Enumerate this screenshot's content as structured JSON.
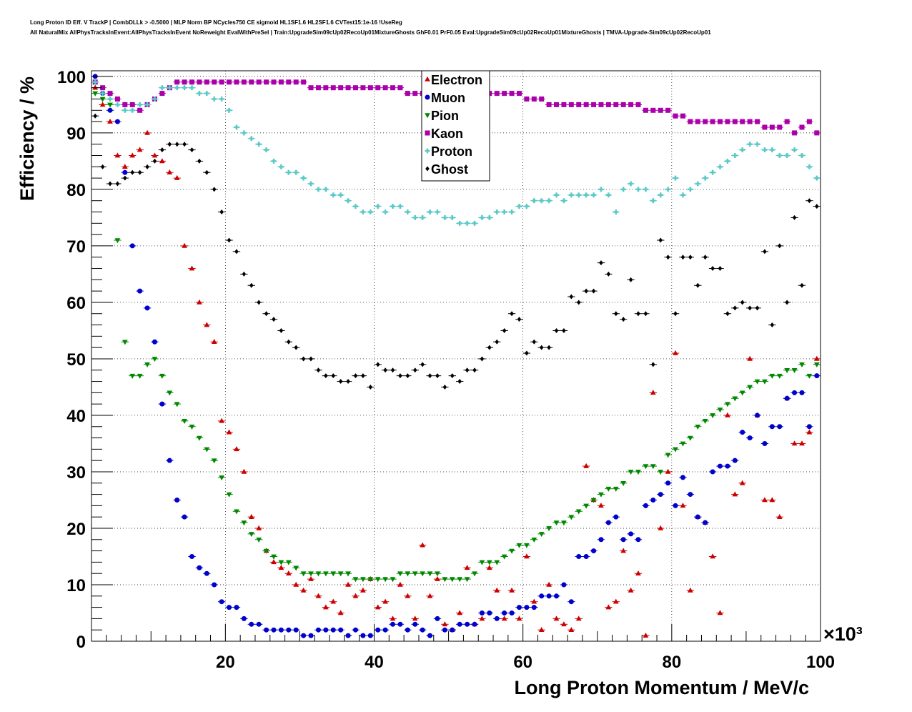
{
  "title": {
    "line1": "Long Proton ID Eff. V TrackP | CombDLLk > -0.5000 | MLP Norm BP NCycles750 CE sigmoid HL1SF1.6 HL2SF1.6 CVTest15:1e-16 !UseReg",
    "line2": "All NaturalMix AllPhysTracksInEvent:AllPhysTracksInEvent NoReweight EvalWithPreSel | Train:UpgradeSim09cUp02RecoUp01MixtureGhosts GhF0.01 PrF0.05 Eval:UpgradeSim09cUp02RecoUp01MixtureGhosts | TMVA-Upgrade-Sim09cUp02RecoUp01"
  },
  "chart_data": {
    "type": "scatter",
    "xlabel": "Long Proton Momentum / MeV/c",
    "ylabel": "Efficiency / %",
    "x_multiplier_label": "×10³",
    "xlim": [
      2,
      100
    ],
    "ylim": [
      0,
      101
    ],
    "xticks": [
      20,
      40,
      60,
      80,
      100
    ],
    "yticks": [
      0,
      10,
      20,
      30,
      40,
      50,
      60,
      70,
      80,
      90,
      100
    ],
    "grid": true,
    "legend_position": "top-center",
    "x": [
      2.5,
      3.5,
      4.5,
      5.5,
      6.5,
      7.5,
      8.5,
      9.5,
      10.5,
      11.5,
      12.5,
      13.5,
      14.5,
      15.5,
      16.5,
      17.5,
      18.5,
      19.5,
      20.5,
      21.5,
      22.5,
      23.5,
      24.5,
      25.5,
      26.5,
      27.5,
      28.5,
      29.5,
      30.5,
      31.5,
      32.5,
      33.5,
      34.5,
      35.5,
      36.5,
      37.5,
      38.5,
      39.5,
      40.5,
      41.5,
      42.5,
      43.5,
      44.5,
      45.5,
      46.5,
      47.5,
      48.5,
      49.5,
      50.5,
      51.5,
      52.5,
      53.5,
      54.5,
      55.5,
      56.5,
      57.5,
      58.5,
      59.5,
      60.5,
      61.5,
      62.5,
      63.5,
      64.5,
      65.5,
      66.5,
      67.5,
      68.5,
      69.5,
      70.5,
      71.5,
      72.5,
      73.5,
      74.5,
      75.5,
      76.5,
      77.5,
      78.5,
      79.5,
      80.5,
      81.5,
      82.5,
      83.5,
      84.5,
      85.5,
      86.5,
      87.5,
      88.5,
      89.5,
      90.5,
      91.5,
      92.5,
      93.5,
      94.5,
      95.5,
      96.5,
      97.5,
      98.5,
      99.5
    ],
    "series": [
      {
        "name": "Electron",
        "color": "#cc0000",
        "marker": "triangle-up",
        "values": [
          98,
          95,
          92,
          86,
          84,
          86,
          87,
          90,
          86,
          85,
          83,
          82,
          70,
          66,
          60,
          56,
          53,
          39,
          37,
          34,
          30,
          22,
          20,
          16,
          14,
          13,
          12,
          10,
          9,
          11,
          8,
          6,
          7,
          5,
          10,
          8,
          9,
          11,
          6,
          7,
          4,
          10,
          8,
          4,
          17,
          8,
          11,
          3,
          2,
          5,
          13,
          3,
          4,
          13,
          9,
          4,
          9,
          4,
          15,
          7,
          2,
          10,
          4,
          3,
          2,
          4,
          31,
          25,
          24,
          6,
          7,
          16,
          9,
          12,
          1,
          44,
          20,
          30,
          51,
          24,
          9,
          22,
          21,
          15,
          5,
          40,
          26,
          28,
          50,
          40,
          25,
          25,
          22,
          43,
          35,
          35,
          37,
          50
        ]
      },
      {
        "name": "Muon",
        "color": "#0000cc",
        "marker": "circle",
        "values": [
          100,
          97,
          94,
          92,
          83,
          70,
          62,
          59,
          53,
          42,
          32,
          25,
          22,
          15,
          13,
          12,
          10,
          7,
          6,
          6,
          4,
          3,
          3,
          2,
          2,
          2,
          2,
          2,
          1,
          1,
          2,
          2,
          2,
          2,
          1,
          2,
          1,
          1,
          2,
          2,
          3,
          3,
          2,
          3,
          2,
          1,
          4,
          2,
          2,
          3,
          3,
          3,
          5,
          5,
          4,
          5,
          5,
          6,
          6,
          6,
          8,
          8,
          8,
          10,
          7,
          15,
          15,
          16,
          18,
          21,
          22,
          18,
          19,
          18,
          24,
          25,
          26,
          28,
          24,
          29,
          26,
          22,
          21,
          30,
          31,
          31,
          32,
          37,
          36,
          40,
          35,
          38,
          38,
          43,
          44,
          44,
          38,
          47
        ]
      },
      {
        "name": "Pion",
        "color": "#008800",
        "marker": "triangle-down",
        "values": [
          97,
          96,
          95,
          71,
          53,
          47,
          47,
          49,
          50,
          47,
          44,
          42,
          39,
          38,
          36,
          34,
          32,
          29,
          26,
          23,
          21,
          19,
          18,
          16,
          15,
          14,
          14,
          13,
          12,
          12,
          12,
          12,
          12,
          12,
          12,
          11,
          11,
          11,
          11,
          11,
          11,
          12,
          12,
          12,
          12,
          12,
          12,
          11,
          11,
          11,
          11,
          12,
          14,
          14,
          14,
          15,
          16,
          17,
          17,
          18,
          19,
          20,
          21,
          21,
          22,
          23,
          24,
          25,
          26,
          27,
          27,
          28,
          30,
          30,
          31,
          31,
          30,
          33,
          34,
          35,
          36,
          38,
          39,
          40,
          41,
          42,
          43,
          44,
          45,
          46,
          46,
          47,
          47,
          48,
          48,
          49,
          47,
          49
        ]
      },
      {
        "name": "Kaon",
        "color": "#aa00aa",
        "marker": "square",
        "values": [
          99,
          98,
          97,
          96,
          95,
          95,
          94,
          95,
          96,
          97,
          98,
          99,
          99,
          99,
          99,
          99,
          99,
          99,
          99,
          99,
          99,
          99,
          99,
          99,
          99,
          99,
          99,
          99,
          99,
          98,
          98,
          98,
          98,
          98,
          98,
          98,
          98,
          98,
          98,
          98,
          98,
          98,
          97,
          97,
          97,
          96,
          97,
          97,
          97,
          97,
          97,
          97,
          97,
          97,
          97,
          97,
          97,
          97,
          96,
          96,
          96,
          95,
          95,
          95,
          95,
          95,
          95,
          95,
          95,
          95,
          95,
          95,
          95,
          95,
          94,
          94,
          94,
          94,
          93,
          93,
          92,
          92,
          92,
          92,
          92,
          92,
          92,
          92,
          92,
          92,
          91,
          91,
          91,
          92,
          90,
          91,
          92,
          90
        ]
      },
      {
        "name": "Proton",
        "color": "#5bc8c8",
        "marker": "cross",
        "values": [
          99,
          97,
          96,
          95,
          94,
          94,
          95,
          95,
          96,
          98,
          98,
          98,
          98,
          98,
          97,
          97,
          96,
          96,
          94,
          91,
          90,
          89,
          88,
          87,
          85,
          84,
          83,
          83,
          82,
          81,
          80,
          80,
          79,
          79,
          78,
          77,
          76,
          76,
          77,
          76,
          77,
          77,
          76,
          75,
          75,
          76,
          76,
          75,
          75,
          74,
          74,
          74,
          75,
          75,
          76,
          76,
          76,
          77,
          77,
          78,
          78,
          78,
          79,
          78,
          79,
          79,
          79,
          79,
          80,
          79,
          76,
          80,
          81,
          80,
          80,
          78,
          79,
          80,
          82,
          79,
          80,
          81,
          82,
          83,
          84,
          85,
          86,
          87,
          88,
          88,
          87,
          87,
          86,
          86,
          87,
          86,
          84,
          82
        ]
      },
      {
        "name": "Ghost",
        "color": "#000000",
        "marker": "diamond",
        "values": [
          93,
          84,
          81,
          81,
          82,
          83,
          83,
          84,
          85,
          87,
          88,
          88,
          88,
          87,
          85,
          83,
          80,
          76,
          71,
          69,
          65,
          63,
          60,
          58,
          57,
          55,
          53,
          52,
          50,
          50,
          48,
          47,
          47,
          46,
          46,
          47,
          47,
          45,
          49,
          48,
          48,
          47,
          47,
          48,
          49,
          47,
          47,
          45,
          47,
          46,
          48,
          48,
          50,
          52,
          53,
          55,
          58,
          57,
          51,
          53,
          52,
          52,
          55,
          55,
          61,
          60,
          62,
          62,
          67,
          65,
          58,
          57,
          64,
          58,
          58,
          49,
          71,
          68,
          58,
          68,
          68,
          63,
          68,
          66,
          66,
          58,
          59,
          60,
          59,
          59,
          69,
          56,
          70,
          60,
          75,
          63,
          78,
          77
        ]
      }
    ]
  }
}
